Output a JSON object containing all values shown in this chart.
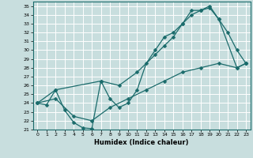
{
  "xlabel": "Humidex (Indice chaleur)",
  "ylabel": "",
  "xlim": [
    -0.5,
    23.5
  ],
  "ylim": [
    21,
    35.5
  ],
  "yticks": [
    21,
    22,
    23,
    24,
    25,
    26,
    27,
    28,
    29,
    30,
    31,
    32,
    33,
    34,
    35
  ],
  "xticks": [
    0,
    1,
    2,
    3,
    4,
    5,
    6,
    7,
    8,
    9,
    10,
    11,
    12,
    13,
    14,
    15,
    16,
    17,
    18,
    19,
    20,
    21,
    22,
    23
  ],
  "bg_color": "#c8dede",
  "grid_color": "#ffffff",
  "line_color": "#1a6b6b",
  "line1_x": [
    0,
    1,
    2,
    3,
    4,
    5,
    6,
    7,
    8,
    9,
    10,
    11,
    12,
    13,
    14,
    15,
    16,
    17,
    18,
    19,
    20,
    21,
    22,
    23
  ],
  "line1_y": [
    24.0,
    23.8,
    25.5,
    23.2,
    21.8,
    21.2,
    21.1,
    26.5,
    24.5,
    23.5,
    24.0,
    25.5,
    28.5,
    30.0,
    31.5,
    32.0,
    33.0,
    34.5,
    34.5,
    35.0,
    33.5,
    32.0,
    30.0,
    28.5
  ],
  "line2_x": [
    0,
    2,
    7,
    9,
    11,
    13,
    14,
    15,
    16,
    17,
    18,
    19,
    20,
    22,
    23
  ],
  "line2_y": [
    24.0,
    25.5,
    26.5,
    26.0,
    27.5,
    29.5,
    30.5,
    31.5,
    33.0,
    34.0,
    34.5,
    34.8,
    33.5,
    28.0,
    28.5
  ],
  "line3_x": [
    0,
    2,
    4,
    6,
    8,
    10,
    12,
    14,
    16,
    18,
    20,
    22,
    23
  ],
  "line3_y": [
    24.0,
    24.5,
    22.5,
    22.0,
    23.5,
    24.5,
    25.5,
    26.5,
    27.5,
    28.0,
    28.5,
    28.0,
    28.5
  ]
}
